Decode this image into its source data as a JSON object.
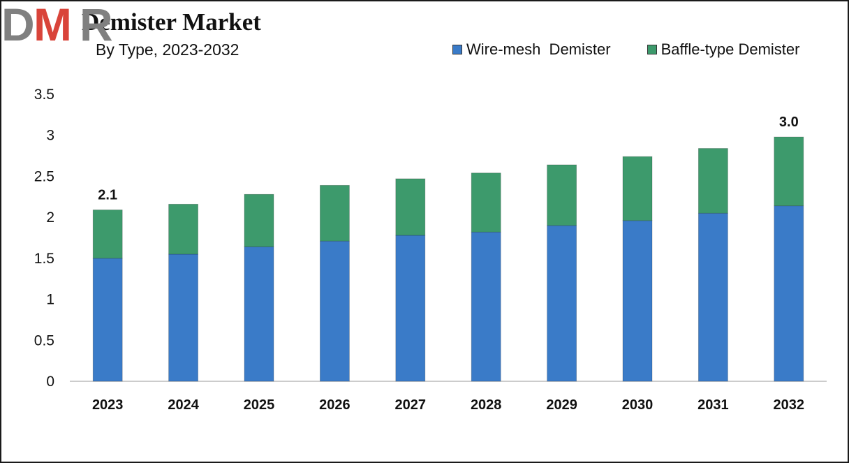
{
  "chart_data": {
    "type": "bar",
    "stacked": true,
    "title": "Demister Market",
    "subtitle": "By Type, 2023-2032",
    "categories": [
      "2023",
      "2024",
      "2025",
      "2026",
      "2027",
      "2028",
      "2029",
      "2030",
      "2031",
      "2032"
    ],
    "series": [
      {
        "name": "Wire-mesh  Demister",
        "color": "#3a7bc8",
        "values": [
          1.5,
          1.55,
          1.64,
          1.71,
          1.78,
          1.82,
          1.9,
          1.96,
          2.05,
          2.14
        ]
      },
      {
        "name": "Baffle-type Demister",
        "color": "#3d9a6c",
        "values": [
          0.59,
          0.61,
          0.64,
          0.68,
          0.69,
          0.72,
          0.74,
          0.78,
          0.79,
          0.84
        ]
      }
    ],
    "data_labels": [
      {
        "category": "2023",
        "text": "2.1"
      },
      {
        "category": "2032",
        "text": "3.0"
      }
    ],
    "yticks": [
      "0",
      "0.5",
      "1",
      "1.5",
      "2",
      "2.5",
      "3",
      "3.5"
    ],
    "ylim": [
      0,
      3.5
    ],
    "xlabel": "",
    "ylabel": "",
    "grid": false,
    "legend_position": "top-right"
  },
  "brand": {
    "logo_text": "DMR",
    "colors": {
      "gray": "#808080",
      "red": "#d9443a"
    }
  }
}
